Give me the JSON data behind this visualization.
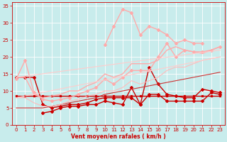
{
  "bg_color": "#c8ecec",
  "grid_color": "#b0d8d8",
  "xlabel": "Vent moyen/en rafales ( km/h )",
  "xlabel_color": "#cc0000",
  "tick_color": "#cc0000",
  "xlim": [
    -0.5,
    23.5
  ],
  "ylim": [
    0,
    36
  ],
  "yticks": [
    0,
    5,
    10,
    15,
    20,
    25,
    30,
    35
  ],
  "xticks": [
    0,
    1,
    2,
    3,
    4,
    5,
    6,
    7,
    8,
    9,
    10,
    11,
    12,
    13,
    14,
    15,
    16,
    17,
    18,
    19,
    20,
    21,
    22,
    23
  ],
  "series": [
    {
      "x": [
        0,
        1,
        2,
        3,
        4,
        5,
        6,
        7,
        8,
        9,
        10,
        11,
        12,
        13,
        14,
        15,
        16,
        17,
        18,
        19,
        20,
        21,
        22,
        23
      ],
      "y": [
        8.5,
        8.5,
        8.5,
        8.5,
        8.5,
        8.5,
        8.5,
        8.5,
        8.5,
        8.5,
        8.5,
        8.5,
        8.5,
        8.5,
        8.5,
        8.5,
        8.5,
        8.5,
        8.5,
        8.5,
        8.5,
        8.5,
        8.5,
        8.5
      ],
      "color": "#cc0000",
      "linewidth": 1.0,
      "marker": "s",
      "markersize": 2.0
    },
    {
      "x": [
        0,
        1,
        2,
        3,
        4,
        5,
        6,
        7,
        8,
        9,
        10,
        11,
        12,
        13,
        14,
        15,
        16,
        17,
        18,
        19,
        20,
        21,
        22,
        23
      ],
      "y": [
        14,
        14,
        14,
        6,
        5,
        5.5,
        6,
        6,
        6.5,
        7.5,
        8,
        8,
        8,
        8,
        6,
        9,
        9,
        7,
        7,
        7,
        7,
        7,
        9.5,
        9
      ],
      "color": "#cc0000",
      "linewidth": 1.0,
      "marker": "D",
      "markersize": 2.0
    },
    {
      "x": [
        3,
        4,
        5,
        6,
        7,
        8,
        9,
        10,
        11,
        12,
        13,
        14,
        15,
        16,
        17,
        18,
        19,
        20,
        21,
        22,
        23
      ],
      "y": [
        3.5,
        4,
        5,
        5.5,
        5.5,
        6,
        6,
        7,
        6.5,
        6,
        11,
        6,
        17,
        12,
        9,
        8.5,
        8,
        8,
        10.5,
        10,
        9.5
      ],
      "color": "#cc0000",
      "linewidth": 1.0,
      "marker": "D",
      "markersize": 2.0
    },
    {
      "x": [
        0,
        1,
        2,
        3,
        4,
        5,
        6,
        7,
        8,
        9,
        10,
        11,
        12,
        13,
        14,
        15,
        16,
        17,
        18,
        19,
        20,
        21,
        22,
        23
      ],
      "y": [
        5,
        5,
        5,
        5,
        5.5,
        6,
        6.5,
        7,
        7.5,
        8,
        9,
        9.5,
        10,
        10.5,
        11,
        11.5,
        12,
        12.5,
        13,
        13.5,
        14,
        14.5,
        15,
        15.5
      ],
      "color": "#cc3333",
      "linewidth": 0.8,
      "marker": null,
      "markersize": 0
    },
    {
      "x": [
        0,
        1,
        2,
        3,
        4,
        5,
        6,
        7,
        8,
        9,
        10,
        11,
        12,
        13,
        14,
        15,
        16,
        17,
        18,
        19,
        20,
        21,
        22,
        23
      ],
      "y": [
        13.5,
        19,
        9.5,
        7.5,
        7,
        7.5,
        8,
        9,
        10,
        11,
        13.5,
        12,
        14,
        16,
        16,
        16,
        20,
        24,
        20,
        22,
        21.5,
        21.5,
        22,
        23
      ],
      "color": "#ffaaaa",
      "linewidth": 1.0,
      "marker": "D",
      "markersize": 2.0
    },
    {
      "x": [
        0,
        1,
        2,
        3,
        4,
        5,
        6,
        7,
        8,
        9,
        10,
        11,
        12,
        13,
        14,
        15,
        16,
        17,
        18,
        19,
        20,
        21,
        22,
        23
      ],
      "y": [
        14,
        14,
        9,
        8,
        8.5,
        9,
        10,
        10,
        11.5,
        12.5,
        15,
        14,
        15,
        18,
        18,
        18,
        19,
        22,
        23,
        22,
        21.5,
        21,
        22,
        23
      ],
      "color": "#ffaaaa",
      "linewidth": 1.0,
      "marker": null,
      "markersize": 0
    },
    {
      "x": [
        10,
        11,
        12,
        13,
        14,
        15,
        16,
        17,
        18,
        19,
        20,
        21
      ],
      "y": [
        23.5,
        29,
        34,
        33,
        26.5,
        29,
        28,
        26.5,
        24,
        25,
        24,
        24
      ],
      "color": "#ffaaaa",
      "linewidth": 1.0,
      "marker": "D",
      "markersize": 2.0
    },
    {
      "x": [
        0,
        1,
        2,
        3,
        4,
        5,
        6,
        7,
        8,
        9,
        10,
        11,
        12,
        13,
        14,
        15,
        16,
        17,
        18,
        19,
        20,
        21,
        22,
        23
      ],
      "y": [
        8,
        8,
        6.5,
        5.5,
        5.5,
        6,
        7,
        7.5,
        8.5,
        9,
        10,
        10,
        11,
        13,
        12,
        13,
        14,
        16,
        17,
        17,
        18,
        19,
        19.5,
        20
      ],
      "color": "#ffbbbb",
      "linewidth": 0.8,
      "marker": null,
      "markersize": 0
    },
    {
      "x": [
        0,
        23
      ],
      "y": [
        14.0,
        22.0
      ],
      "color": "#ffcccc",
      "linewidth": 0.8,
      "marker": null,
      "markersize": 0
    },
    {
      "x": [
        0,
        23
      ],
      "y": [
        8.0,
        20.0
      ],
      "color": "#ffcccc",
      "linewidth": 0.8,
      "marker": null,
      "markersize": 0
    }
  ]
}
